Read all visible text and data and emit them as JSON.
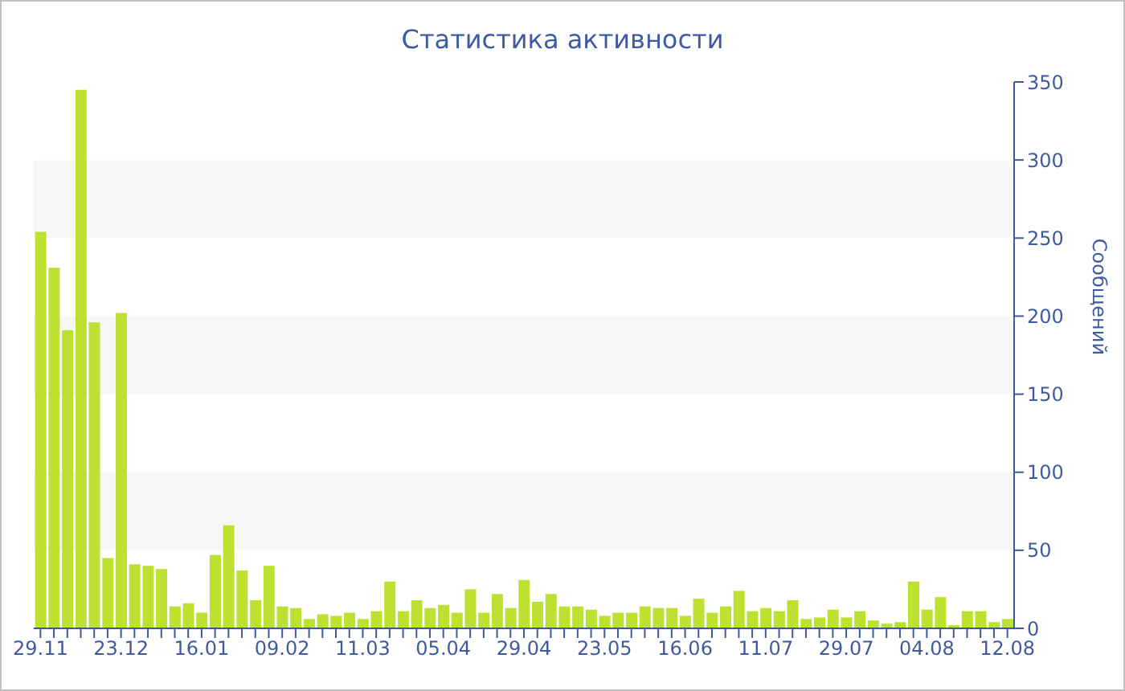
{
  "chart_data": {
    "type": "bar",
    "title": "Статистика активности",
    "ylabel": "Сообщений",
    "categories": [
      "29.11",
      null,
      null,
      null,
      null,
      null,
      "23.12",
      null,
      null,
      null,
      null,
      null,
      "16.01",
      null,
      null,
      null,
      null,
      null,
      "09.02",
      null,
      null,
      null,
      null,
      null,
      "11.03",
      null,
      null,
      null,
      null,
      null,
      "05.04",
      null,
      null,
      null,
      null,
      null,
      "29.04",
      null,
      null,
      null,
      null,
      null,
      "23.05",
      null,
      null,
      null,
      null,
      null,
      "16.06",
      null,
      null,
      null,
      null,
      null,
      "11.07",
      null,
      null,
      null,
      null,
      null,
      "29.07",
      null,
      null,
      null,
      null,
      null,
      "04.08",
      null,
      null,
      null,
      null,
      null,
      "12.08"
    ],
    "values": [
      254,
      231,
      191,
      345,
      196,
      45,
      202,
      41,
      40,
      38,
      14,
      16,
      10,
      47,
      66,
      37,
      18,
      40,
      14,
      13,
      6,
      9,
      8,
      10,
      6,
      11,
      30,
      11,
      18,
      13,
      15,
      10,
      25,
      10,
      22,
      13,
      31,
      17,
      22,
      14,
      14,
      12,
      8,
      10,
      10,
      14,
      13,
      13,
      8,
      19,
      10,
      14,
      24,
      11,
      13,
      11,
      18,
      6,
      7,
      12,
      7,
      11,
      5,
      3,
      4,
      30,
      12,
      20,
      2,
      11,
      11,
      4,
      6
    ],
    "color": "#bde130",
    "ylim": [
      0,
      350
    ],
    "yticks": [
      0,
      50,
      100,
      150,
      200,
      250,
      300,
      350
    ],
    "grid": false,
    "legend": false,
    "bands": [
      {
        "axis": "y",
        "from": 50,
        "to": 100,
        "color": "#f7f7f7"
      },
      {
        "axis": "y",
        "from": 150,
        "to": 200,
        "color": "#f7f7f7"
      },
      {
        "axis": "y",
        "from": 250,
        "to": 300,
        "color": "#f7f7f7"
      }
    ]
  }
}
